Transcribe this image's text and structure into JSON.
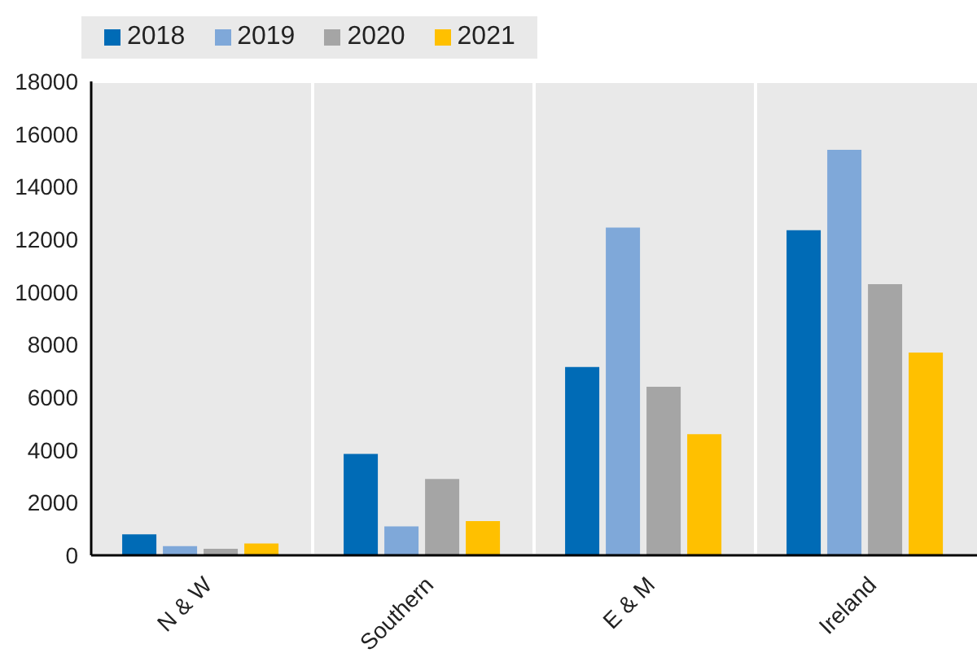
{
  "chart_data": {
    "type": "bar",
    "categories": [
      "N & W",
      "Southern",
      "E & M",
      "Ireland"
    ],
    "series": [
      {
        "name": "2018",
        "color": "#006bb6",
        "values": [
          800,
          3850,
          7150,
          12350
        ]
      },
      {
        "name": "2019",
        "color": "#7fa8d9",
        "values": [
          350,
          1100,
          12450,
          15400
        ]
      },
      {
        "name": "2020",
        "color": "#a5a5a5",
        "values": [
          250,
          2900,
          6400,
          10300
        ]
      },
      {
        "name": "2021",
        "color": "#ffc000",
        "values": [
          450,
          1300,
          4600,
          7700
        ]
      }
    ],
    "ylim": [
      0,
      18000
    ],
    "yticks": [
      0,
      2000,
      4000,
      6000,
      8000,
      10000,
      12000,
      14000,
      16000,
      18000
    ],
    "grid": true,
    "legend": "top left"
  }
}
